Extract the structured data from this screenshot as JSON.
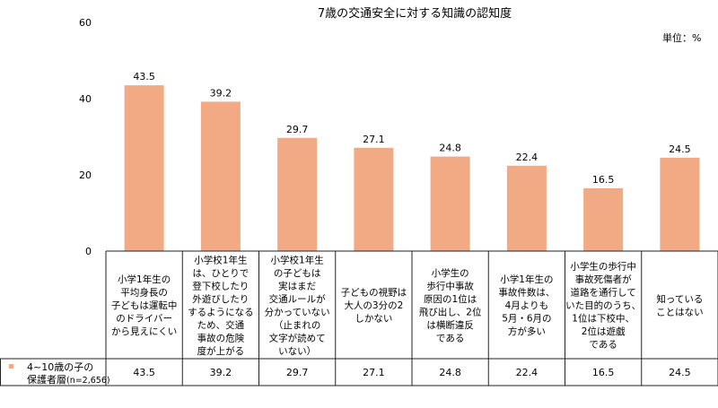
{
  "chart_data": {
    "type": "bar",
    "title": "7歳の交通安全に対する知識の認知度",
    "unit_label": "単位：%",
    "ylim": [
      0,
      60
    ],
    "yticks": [
      0,
      20,
      40,
      60
    ],
    "grid": false,
    "categories": [
      [
        "小学1年生の",
        "平均身長の",
        "子どもは運転中",
        "のドライバー",
        "から見えにくい"
      ],
      [
        "小学校1年生",
        "は、ひとりで",
        "登下校したり",
        "外遊びしたり",
        "するようになる",
        "ため、交通",
        "事故の危険",
        "度が上がる"
      ],
      [
        "小学校1年生",
        "の子どもは",
        "実はまだ",
        "交通ルールが",
        "分かっていない",
        "（止まれの",
        "文字が読めて",
        "いない）"
      ],
      [
        "子どもの視野は",
        "大人の3分の2",
        "しかない"
      ],
      [
        "小学生の",
        "歩行中事故",
        "原因の1位は",
        "飛び出し、2位",
        "は横断違反",
        "である"
      ],
      [
        "小学1年生の",
        "事故件数は、",
        "4月よりも",
        "5月・6月の",
        "方が多い"
      ],
      [
        "小学生の歩行中",
        "事故死傷者が",
        "道路を通行して",
        "いた目的のうち、",
        "1位は下校中、",
        "2位は遊戯",
        "である"
      ],
      [
        "知っている",
        "ことはない"
      ]
    ],
    "series": [
      {
        "name": "4~10歳の子の保護者層",
        "name_line1": "4~10歳の子の",
        "name_line2": "保護者層",
        "name_note": "(n=2,656)",
        "color": "#f2aa84",
        "values": [
          43.5,
          39.2,
          29.7,
          27.1,
          24.8,
          22.4,
          16.5,
          24.5
        ]
      }
    ]
  }
}
